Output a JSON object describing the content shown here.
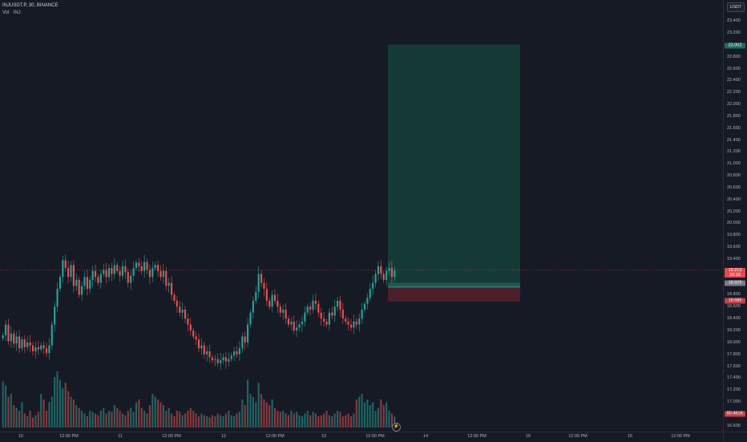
{
  "legend": {
    "symbol": "INJUSDT.P, 30, BINANCE",
    "volume": "Vol · INJ"
  },
  "price_axis": {
    "currency": "USDT",
    "ticks": [
      "23.400",
      "23.200",
      "22.800",
      "22.600",
      "22.400",
      "22.200",
      "22.000",
      "21.800",
      "21.600",
      "21.400",
      "21.200",
      "21.000",
      "20.800",
      "20.600",
      "20.400",
      "20.200",
      "20.000",
      "19.800",
      "19.600",
      "19.400",
      "18.800",
      "18.600",
      "18.400",
      "18.200",
      "18.000",
      "17.800",
      "17.600",
      "17.400",
      "17.200",
      "17.000",
      "16.600"
    ],
    "target_label": "23.002",
    "current_price": "19.213",
    "countdown": "20:16",
    "entry_label": "18.929",
    "stop_label": "18.686",
    "volume_label": "80.461K"
  },
  "time_axis": {
    "ticks": [
      "10",
      "12:00 PM",
      "11",
      "12:00 PM",
      "12",
      "12:00 PM",
      "13",
      "12:00 PM",
      "14",
      "12:00 PM",
      "15",
      "12:00 PM",
      "16",
      "12:00 PM"
    ]
  },
  "colors": {
    "up": "#26a69a",
    "down": "#ef5350",
    "background": "#161a25",
    "target_zone": "#153a36",
    "stop_zone": "#4a1f2a"
  },
  "chart_data": {
    "type": "candlestick",
    "symbol": "INJUSDT.P",
    "interval": "30",
    "exchange": "BINANCE",
    "ylim": [
      16.5,
      23.5
    ],
    "position": {
      "side": "long",
      "entry": 18.929,
      "target": 23.002,
      "stop": 18.686
    },
    "closes": [
      18.12,
      18.3,
      18.02,
      18.15,
      17.98,
      18.1,
      17.9,
      18.05,
      17.92,
      18.0,
      17.95,
      17.85,
      17.92,
      17.88,
      17.95,
      17.9,
      17.82,
      17.95,
      18.3,
      18.6,
      18.9,
      19.1,
      19.38,
      19.25,
      19.1,
      19.3,
      18.95,
      19.05,
      18.8,
      18.95,
      19.1,
      18.9,
      19.05,
      19.2,
      19.1,
      19.0,
      19.15,
      19.22,
      19.1,
      19.25,
      19.15,
      19.3,
      19.2,
      19.12,
      19.28,
      19.18,
      19.0,
      19.12,
      19.25,
      19.34,
      19.28,
      19.2,
      19.35,
      19.22,
      19.1,
      19.25,
      19.3,
      19.2,
      19.1,
      19.2,
      18.95,
      19.0,
      18.8,
      18.7,
      18.6,
      18.5,
      18.55,
      18.4,
      18.3,
      18.2,
      18.1,
      18.05,
      17.9,
      17.95,
      17.8,
      17.85,
      17.75,
      17.7,
      17.72,
      17.65,
      17.7,
      17.75,
      17.68,
      17.72,
      17.78,
      17.85,
      17.8,
      17.9,
      18.1,
      18.0,
      18.3,
      18.5,
      18.7,
      18.85,
      19.15,
      19.0,
      18.9,
      18.7,
      18.6,
      18.8,
      18.7,
      18.6,
      18.5,
      18.55,
      18.4,
      18.3,
      18.35,
      18.2,
      18.25,
      18.3,
      18.35,
      18.5,
      18.6,
      18.55,
      18.7,
      18.65,
      18.5,
      18.4,
      18.35,
      18.3,
      18.5,
      18.45,
      18.6,
      18.7,
      18.55,
      18.4,
      18.35,
      18.3,
      18.25,
      18.35,
      18.3,
      18.4,
      18.55,
      18.65,
      18.75,
      18.9,
      19.0,
      19.15,
      19.28,
      19.15,
      19.05,
      19.2,
      19.25,
      19.1,
      19.21
    ],
    "volumes": [
      0.82,
      0.75,
      0.55,
      0.6,
      0.4,
      0.35,
      0.3,
      0.45,
      0.25,
      0.2,
      0.3,
      0.18,
      0.22,
      0.28,
      0.6,
      0.5,
      0.3,
      0.45,
      0.55,
      0.9,
      1.0,
      0.85,
      0.7,
      0.8,
      0.65,
      0.55,
      0.5,
      0.4,
      0.35,
      0.3,
      0.25,
      0.2,
      0.3,
      0.28,
      0.25,
      0.22,
      0.3,
      0.35,
      0.25,
      0.3,
      0.28,
      0.4,
      0.35,
      0.3,
      0.25,
      0.22,
      0.3,
      0.35,
      0.28,
      0.45,
      0.5,
      0.35,
      0.3,
      0.25,
      0.4,
      0.6,
      0.55,
      0.5,
      0.45,
      0.4,
      0.3,
      0.35,
      0.25,
      0.2,
      0.3,
      0.28,
      0.22,
      0.25,
      0.3,
      0.35,
      0.3,
      0.25,
      0.2,
      0.25,
      0.22,
      0.2,
      0.18,
      0.22,
      0.2,
      0.25,
      0.22,
      0.2,
      0.25,
      0.3,
      0.22,
      0.2,
      0.25,
      0.28,
      0.5,
      0.4,
      0.85,
      0.6,
      0.55,
      0.45,
      0.8,
      0.6,
      0.5,
      0.45,
      0.4,
      0.5,
      0.35,
      0.3,
      0.28,
      0.3,
      0.25,
      0.22,
      0.3,
      0.25,
      0.28,
      0.22,
      0.2,
      0.25,
      0.3,
      0.22,
      0.28,
      0.25,
      0.2,
      0.22,
      0.25,
      0.3,
      0.22,
      0.2,
      0.25,
      0.3,
      0.28,
      0.2,
      0.22,
      0.25,
      0.2,
      0.25,
      0.5,
      0.55,
      0.6,
      0.45,
      0.5,
      0.4,
      0.45,
      0.3,
      0.35,
      0.5,
      0.4,
      0.45,
      0.3,
      0.25,
      0.2
    ]
  }
}
